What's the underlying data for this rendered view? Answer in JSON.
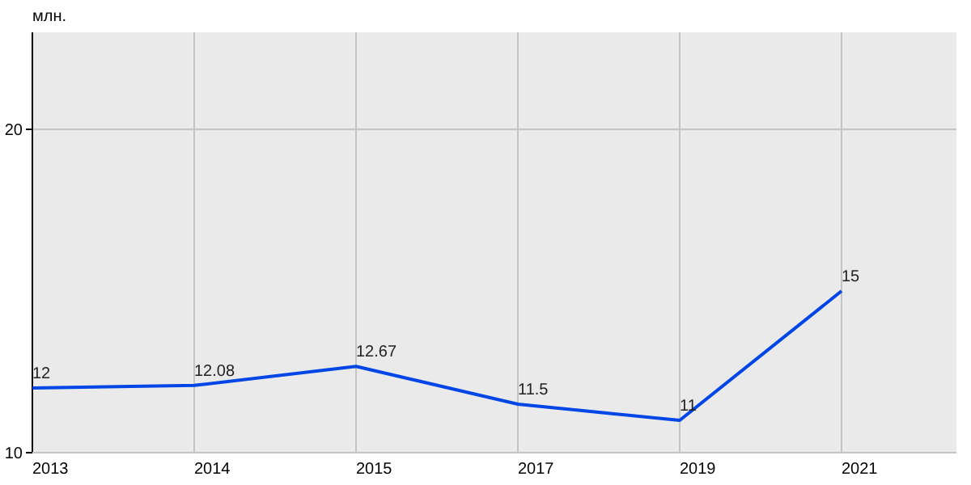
{
  "chart_data": {
    "type": "line",
    "ylabel": "млн.",
    "categories": [
      "2013",
      "2014",
      "2015",
      "2017",
      "2019",
      "2021"
    ],
    "series": [
      {
        "color": "#0046e6",
        "values": [
          12,
          12.08,
          12.67,
          11.5,
          11,
          15
        ]
      }
    ],
    "ylim": [
      10,
      23
    ],
    "yticks": [
      10,
      20
    ],
    "grid": true,
    "data_labels": true,
    "marker": "none",
    "line_style": "solid"
  }
}
